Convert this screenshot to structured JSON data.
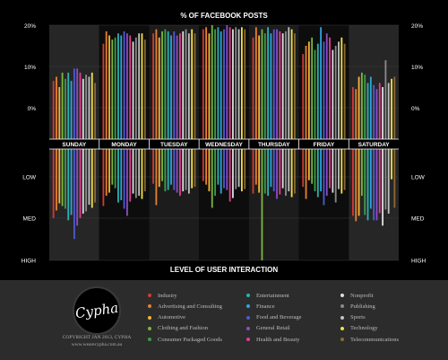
{
  "chart_data": {
    "type": "bar",
    "title": "% OF FACEBOOK POSTS",
    "xlabel": "LEVEL OF USER INTERACTION",
    "top_axis": {
      "ticks": [
        "20%",
        "10%",
        "0%"
      ],
      "ylim": [
        0,
        20
      ]
    },
    "bottom_axis": {
      "ticks": [
        "LOW",
        "MED",
        "HIGH"
      ]
    },
    "categories": [
      "SUNDAY",
      "MONDAY",
      "TUESDAY",
      "WEDNESDAY",
      "THURSDAY",
      "FRIDAY",
      "SATURDAY"
    ],
    "series": [
      {
        "name": "Industry",
        "color": "#d13a35",
        "posts": [
          6.5,
          15.5,
          18,
          19,
          17,
          13,
          5
        ],
        "interaction": [
          1.55,
          1.28,
          0.78,
          0.72,
          1.0,
          0.85,
          1.5
        ]
      },
      {
        "name": "Advertising and Consulting",
        "color": "#e8802c",
        "posts": [
          7.5,
          18.5,
          19,
          19.5,
          19.5,
          15,
          4.5
        ],
        "interaction": [
          1.38,
          1.05,
          1.26,
          0.8,
          0.8,
          1.12,
          1.62
        ]
      },
      {
        "name": "Automotive",
        "color": "#f3b535",
        "posts": [
          5,
          17.5,
          17,
          18,
          17.5,
          16,
          7.5
        ],
        "interaction": [
          1.22,
          0.98,
          0.85,
          0.95,
          0.98,
          0.7,
          1.5
        ]
      },
      {
        "name": "Clothing and Fashion",
        "color": "#7bb63d",
        "posts": [
          8.5,
          16.5,
          18.5,
          20,
          19,
          17,
          8.5
        ],
        "interaction": [
          1.28,
          0.8,
          0.72,
          1.32,
          2.5,
          0.78,
          1.05
        ]
      },
      {
        "name": "Consumer Packaged Goods",
        "color": "#3a9d4a",
        "posts": [
          7,
          17,
          19,
          19,
          18,
          14,
          8
        ],
        "interaction": [
          1.34,
          0.88,
          0.95,
          1.05,
          1.0,
          0.95,
          1.48
        ]
      },
      {
        "name": "Entertainment",
        "color": "#2ab2ad",
        "posts": [
          8.5,
          18,
          18.5,
          19.5,
          19.5,
          15.5,
          6
        ],
        "interaction": [
          1.6,
          1.2,
          0.92,
          0.8,
          1.05,
          1.08,
          1.6
        ]
      },
      {
        "name": "Finance",
        "color": "#2ba5e3",
        "posts": [
          6.5,
          17.5,
          17.5,
          18.5,
          18,
          19.5,
          7.5
        ],
        "interaction": [
          1.48,
          1.15,
          0.8,
          1.0,
          0.85,
          0.95,
          1.34
        ]
      },
      {
        "name": "Food and Beverage",
        "color": "#4d5bd1",
        "posts": [
          9.5,
          18.5,
          18.5,
          19,
          19,
          16,
          5.5
        ],
        "interaction": [
          2.02,
          1.34,
          0.92,
          0.88,
          0.95,
          1.26,
          1.6
        ]
      },
      {
        "name": "General Retail",
        "color": "#8e4bc8",
        "posts": [
          9.5,
          18,
          17.5,
          20,
          19,
          18,
          4.5
        ],
        "interaction": [
          1.72,
          1.5,
          0.98,
          0.92,
          1.12,
          1.05,
          1.6
        ]
      },
      {
        "name": "Health and Beauty",
        "color": "#e03f8f",
        "posts": [
          8.5,
          17.5,
          18,
          19.5,
          18.5,
          17,
          6
        ],
        "interaction": [
          1.55,
          1.18,
          1.05,
          1.18,
          1.02,
          0.88,
          1.44
        ]
      },
      {
        "name": "Nonprofit",
        "color": "#dddddd",
        "posts": [
          7,
          16,
          18.5,
          19,
          18,
          14,
          5
        ],
        "interaction": [
          1.45,
          1.0,
          0.95,
          1.1,
          0.88,
          0.98,
          1.72
        ]
      },
      {
        "name": "Publishing",
        "color": "#8a8a8a",
        "posts": [
          8,
          17,
          19,
          19.5,
          18.5,
          15,
          11.5
        ],
        "interaction": [
          1.4,
          1.1,
          0.92,
          0.9,
          1.05,
          1.2,
          1.36
        ]
      },
      {
        "name": "Sports",
        "color": "#c1c1c1",
        "posts": [
          7.5,
          18,
          18,
          19,
          19.5,
          16,
          6
        ],
        "interaction": [
          1.25,
          1.05,
          1.0,
          0.85,
          0.95,
          0.9,
          1.45
        ]
      },
      {
        "name": "Technology",
        "color": "#f4e042",
        "posts": [
          8.5,
          18,
          19,
          19.5,
          19,
          17,
          7
        ],
        "interaction": [
          1.32,
          1.12,
          0.88,
          0.95,
          1.08,
          1.0,
          0.68
        ]
      },
      {
        "name": "Telecommunications",
        "color": "#8a6a35",
        "posts": [
          6,
          16.5,
          18,
          19,
          18,
          15.5,
          7.5
        ],
        "interaction": [
          1.2,
          0.95,
          0.85,
          0.9,
          1.0,
          0.92,
          1.32
        ]
      }
    ],
    "legend_placement": "bottom"
  },
  "footer": {
    "logo_text": "Cypha",
    "copyright_line1": "COPYRIGHT JAN 2013, CYPHA",
    "copyright_line2": "www.wearecypha.com.au"
  }
}
